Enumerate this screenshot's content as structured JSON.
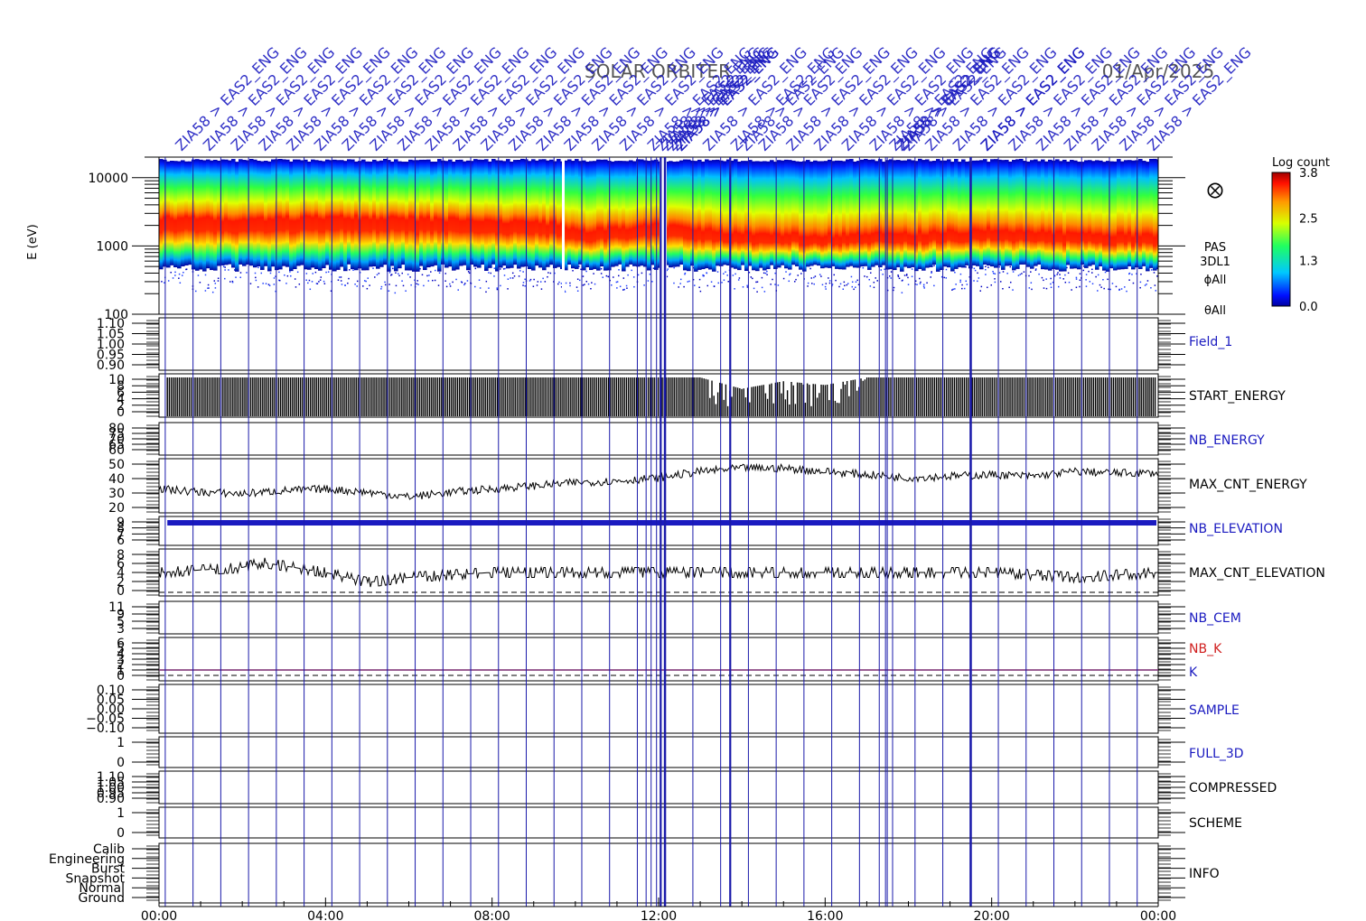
{
  "header": {
    "mission": "SOLAR ORBITER",
    "date": "01/Apr/2025",
    "event_label_prefix": "ZIA58",
    "event_label_suffix": "> EAS2_ENG"
  },
  "colors": {
    "frame": "#000000",
    "event_line": "#1a1aaa",
    "label_blue": "#1a1ac0",
    "label_red": "#d02020",
    "k_line": "#7a2a70"
  },
  "time_axis": {
    "ticks": [
      "00:00",
      "04:00",
      "08:00",
      "12:00",
      "16:00",
      "20:00",
      "00:00"
    ],
    "range_hours": [
      0,
      24
    ]
  },
  "spectrogram": {
    "ylabel": "E (eV)",
    "yticks": [
      "10000",
      "1000",
      "100"
    ],
    "side_labels": [
      "PAS",
      "3DL1",
      "ϕAll",
      "θAll"
    ],
    "colorbar": {
      "title": "Log count",
      "ticks": [
        "3.8",
        "2.5",
        "1.3",
        "0.0"
      ],
      "range": [
        0.0,
        3.8
      ]
    }
  },
  "panels": [
    {
      "key": "field1",
      "label": "Field_1",
      "color": "blue",
      "yticks": [
        "1.10",
        "1.05",
        "1.00",
        "0.95",
        "0.90"
      ]
    },
    {
      "key": "start_energy",
      "label": "START_ENERGY",
      "color": "black",
      "yticks": [
        "10",
        "8",
        "6",
        "4",
        "2",
        "0"
      ]
    },
    {
      "key": "nb_energy",
      "label": "NB_ENERGY",
      "color": "blue",
      "yticks": [
        "80",
        "75",
        "70",
        "65",
        "60"
      ]
    },
    {
      "key": "max_cnt_energy",
      "label": "MAX_CNT_ENERGY",
      "color": "black",
      "yticks": [
        "50",
        "40",
        "30",
        "20"
      ]
    },
    {
      "key": "nb_elevation",
      "label": "NB_ELEVATION",
      "color": "blue",
      "yticks": [
        "9",
        "8",
        "7",
        "6"
      ]
    },
    {
      "key": "max_cnt_elevation",
      "label": "MAX_CNT_ELEVATION",
      "color": "black",
      "yticks": [
        "8",
        "6",
        "4",
        "2",
        "0"
      ]
    },
    {
      "key": "nb_cem",
      "label": "NB_CEM",
      "color": "blue",
      "yticks": [
        "11",
        "9",
        "5",
        "3"
      ]
    },
    {
      "key": "k",
      "label": "NB_K",
      "label2": "K",
      "color": "red",
      "yticks": [
        "6",
        "5",
        "4",
        "3",
        "2",
        "1",
        "0"
      ]
    },
    {
      "key": "sample",
      "label": "SAMPLE",
      "color": "blue",
      "yticks": [
        "0.10",
        "0.05",
        "0.00",
        "−0.05",
        "−0.10"
      ]
    },
    {
      "key": "full3d",
      "label": "FULL_3D",
      "color": "blue",
      "yticks": [
        "1",
        "0"
      ]
    },
    {
      "key": "compressed",
      "label": "COMPRESSED",
      "color": "black",
      "yticks": [
        "1.10",
        "1.05",
        "1.00",
        "0.95",
        "0.90"
      ]
    },
    {
      "key": "scheme",
      "label": "SCHEME",
      "color": "black",
      "yticks": [
        "1",
        "0"
      ]
    },
    {
      "key": "info",
      "label": "INFO",
      "color": "black",
      "yticks": [
        "Calib",
        "Engineering",
        "Burst",
        "Snapshot",
        "Normal",
        "Ground"
      ]
    }
  ],
  "chart_data": [
    {
      "type": "heatmap",
      "title": "SOLAR ORBITER 01/Apr/2025",
      "xlabel": "",
      "ylabel": "E (eV)",
      "y_scale": "log",
      "ylim": [
        100,
        20000
      ],
      "x_hours": [
        0,
        2,
        4,
        6,
        8,
        9.5,
        10,
        12,
        13,
        14,
        16,
        18,
        20,
        22,
        24
      ],
      "peak_energy_ev": [
        2600,
        2400,
        2600,
        2500,
        2300,
        2100,
        1600,
        2000,
        1700,
        1500,
        1400,
        1500,
        1700,
        1500,
        1400
      ],
      "zlabel": "Log count",
      "zlim": [
        0.0,
        3.8
      ]
    },
    {
      "type": "line",
      "title": "MAX_CNT_ENERGY",
      "x_hours": [
        0,
        1,
        2,
        3,
        4,
        5,
        6,
        7,
        8,
        9,
        10,
        11,
        12,
        13,
        14,
        15,
        16,
        17,
        18,
        19,
        20,
        21,
        22,
        23,
        24
      ],
      "y": [
        33,
        31,
        30,
        32,
        33,
        31,
        28,
        31,
        33,
        35,
        37,
        38,
        40,
        44,
        46,
        46,
        44,
        42,
        40,
        41,
        42,
        41,
        44,
        43,
        43
      ],
      "ylim": [
        18,
        52
      ]
    },
    {
      "type": "line",
      "title": "MAX_CNT_ELEVATION",
      "x_hours": [
        0,
        2,
        2.5,
        4,
        5,
        6,
        8,
        10,
        12,
        14,
        16,
        18,
        20,
        22,
        24
      ],
      "y": [
        4,
        5,
        6,
        4,
        2,
        3,
        4,
        4,
        4,
        4,
        4,
        4,
        4,
        3,
        4
      ],
      "ylim": [
        0,
        8
      ]
    },
    {
      "type": "line",
      "title": "START_ENERGY",
      "x_hours": [
        0.2,
        13,
        14,
        15,
        16,
        17,
        24
      ],
      "y": [
        10,
        10,
        7,
        9,
        8,
        10,
        10
      ],
      "ylim": [
        0,
        10
      ]
    },
    {
      "type": "line",
      "title": "NB_ELEVATION",
      "x_hours": [
        0.2,
        24
      ],
      "y": [
        9,
        9
      ],
      "ylim": [
        6,
        9
      ]
    },
    {
      "type": "line",
      "title": "K",
      "x_hours": [
        0,
        24
      ],
      "y": [
        1,
        1
      ],
      "ylim": [
        0,
        6
      ]
    }
  ]
}
